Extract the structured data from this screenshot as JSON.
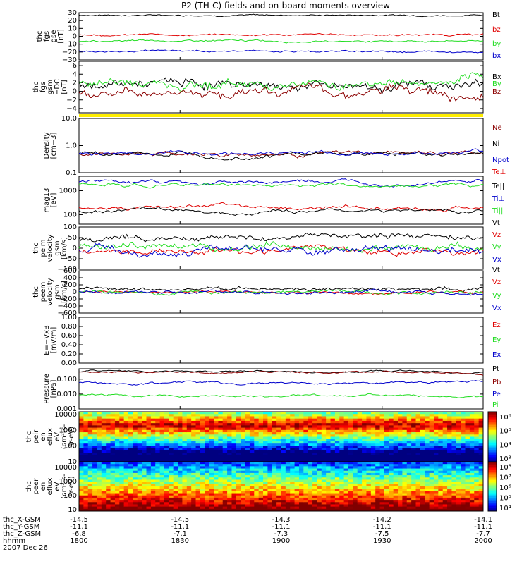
{
  "title": "P2 (TH-C) fields and on-board moments overview",
  "footer": {
    "row_labels": [
      "thc_X-GSM",
      "thc_Y-GSM",
      "thc_Z-GSM",
      "hhmm",
      "2007 Dec 26"
    ],
    "columns": [
      {
        "x": "-14.5",
        "y": "-11.1",
        "z": "-6.8",
        "t": "1800"
      },
      {
        "x": "-14.5",
        "y": "-11.1",
        "z": "-7.1",
        "t": "1830"
      },
      {
        "x": "-14.3",
        "y": "-11.1",
        "z": "-7.3",
        "t": "1900"
      },
      {
        "x": "-14.2",
        "y": "-11.1",
        "z": "-7.5",
        "t": "1930"
      },
      {
        "x": "-14.1",
        "y": "-11.1",
        "z": "-7.7",
        "t": "2000"
      }
    ]
  },
  "colors": {
    "black": "#000000",
    "red": "#e00000",
    "green": "#22dd22",
    "blue": "#0000cc",
    "darkred": "#8b0000",
    "yellow": "#ffee00"
  },
  "chart_data": [
    {
      "id": "fgs_gse",
      "type": "line",
      "ylabel": [
        "thc",
        "fgs",
        "gse",
        "[nT]"
      ],
      "scale": "linear",
      "ylim": [
        -30,
        30
      ],
      "ticks": [
        -30,
        -20,
        -10,
        0,
        10,
        20,
        30
      ],
      "tick_labels": [
        "−30",
        "−20",
        "−10",
        "0",
        "10",
        "20",
        "30"
      ],
      "series": [
        {
          "name": "Bt",
          "color": "black",
          "base": 27,
          "noise": 1
        },
        {
          "name": "bz",
          "color": "red",
          "base": 2,
          "noise": 1.2
        },
        {
          "name": "by",
          "color": "green",
          "base": -6,
          "noise": 1.2
        },
        {
          "name": "bx",
          "color": "blue",
          "base": -19,
          "noise": 1.2
        }
      ]
    },
    {
      "id": "fgs_gsm_dc",
      "type": "line",
      "ylabel": [
        "thc",
        "fgs",
        "gsm",
        "−DC",
        "[nT]"
      ],
      "scale": "linear",
      "ylim": [
        -5,
        7
      ],
      "ticks": [
        -4,
        -2,
        0,
        2,
        4,
        6
      ],
      "tick_labels": [
        "−4",
        "−2",
        "0",
        "2",
        "4",
        "6"
      ],
      "series": [
        {
          "name": "Bx",
          "color": "black",
          "base": 1.5,
          "noise": 1.2
        },
        {
          "name": "By",
          "color": "green",
          "base": 2,
          "noise": 1.2
        },
        {
          "name": "Bz",
          "color": "darkred",
          "base": 0,
          "noise": 1.2
        }
      ]
    },
    {
      "id": "density",
      "type": "line",
      "ylabel": [
        "Density",
        "[cm−3]"
      ],
      "scale": "log",
      "ylim": [
        0.1,
        10
      ],
      "ticks": [
        0.1,
        1,
        10
      ],
      "tick_labels": [
        "0.1",
        "1.0",
        "10.0"
      ],
      "series": [
        {
          "name": "Ne",
          "color": "darkred",
          "base": 0.5,
          "noise": 0.05
        },
        {
          "name": "Ni",
          "color": "black",
          "base": 0.5,
          "noise": 0.05
        },
        {
          "name": "Npot",
          "color": "blue",
          "base": 0.55,
          "noise": 0.03
        }
      ]
    },
    {
      "id": "temp",
      "type": "line",
      "ylabel": [
        "mag13",
        "[eV]"
      ],
      "scale": "log",
      "ylim": [
        40,
        4000
      ],
      "ticks": [
        100,
        1000
      ],
      "tick_labels": [
        "100",
        "1000"
      ],
      "series": [
        {
          "name": "Te⊥",
          "color": "red",
          "base": 200,
          "noise": 0.05
        },
        {
          "name": "Te||",
          "color": "black",
          "base": 150,
          "noise": 0.05
        },
        {
          "name": "Ti⊥",
          "color": "blue",
          "base": 2200,
          "noise": 0.04
        },
        {
          "name": "Ti||",
          "color": "green",
          "base": 1700,
          "noise": 0.04
        }
      ]
    },
    {
      "id": "peim_vel",
      "type": "line",
      "ylabel": [
        "thc",
        "peim",
        "velocity",
        "gsm",
        "[km/s]"
      ],
      "scale": "linear",
      "ylim": [
        -100,
        100
      ],
      "ticks": [
        -100,
        -50,
        0,
        50,
        100
      ],
      "tick_labels": [
        "−100",
        "−50",
        "0",
        "50",
        "100"
      ],
      "series": [
        {
          "name": "Vt",
          "color": "black",
          "base": 50,
          "noise": 15
        },
        {
          "name": "Vz",
          "color": "red",
          "base": -10,
          "noise": 15
        },
        {
          "name": "Vy",
          "color": "green",
          "base": 5,
          "noise": 18
        },
        {
          "name": "Vx",
          "color": "blue",
          "base": -15,
          "noise": 18
        }
      ]
    },
    {
      "id": "peem_vel",
      "type": "line",
      "ylabel": [
        "thc",
        "peem",
        "velocity",
        "gsm",
        "[km/s]"
      ],
      "scale": "linear",
      "ylim": [
        -600,
        600
      ],
      "ticks": [
        -600,
        -400,
        -200,
        0,
        200,
        400,
        600
      ],
      "tick_labels": [
        "−600",
        "−400",
        "−200",
        "0",
        "200",
        "400",
        "600"
      ],
      "series": [
        {
          "name": "Vt",
          "color": "black",
          "base": 80,
          "noise": 60
        },
        {
          "name": "Vz",
          "color": "red",
          "base": 0,
          "noise": 40
        },
        {
          "name": "Vy",
          "color": "green",
          "base": 0,
          "noise": 50
        },
        {
          "name": "Vx",
          "color": "blue",
          "base": 0,
          "noise": 50
        }
      ]
    },
    {
      "id": "efield",
      "type": "line",
      "ylabel": [
        "E=−VxB",
        "[mV/m]"
      ],
      "scale": "linear",
      "ylim": [
        0,
        1
      ],
      "ticks": [
        0,
        0.2,
        0.4,
        0.6,
        0.8,
        1.0
      ],
      "tick_labels": [
        "0.00",
        "0.20",
        "0.40",
        "0.60",
        "0.80",
        "1.00"
      ],
      "series": [
        {
          "name": "Ez",
          "color": "red"
        },
        {
          "name": "Ey",
          "color": "green"
        },
        {
          "name": "Ex",
          "color": "blue"
        }
      ]
    },
    {
      "id": "pressure",
      "type": "line",
      "ylabel": [
        "Pressure",
        "[nPa]"
      ],
      "scale": "log",
      "ylim": [
        0.001,
        0.5
      ],
      "ticks": [
        0.001,
        0.01,
        0.1
      ],
      "tick_labels": [
        "0.001",
        "0.010",
        "0.100"
      ],
      "series": [
        {
          "name": "Pt",
          "color": "black",
          "base": 0.3,
          "noise": 0.02
        },
        {
          "name": "Pb",
          "color": "darkred",
          "base": 0.28,
          "noise": 0.02
        },
        {
          "name": "Pe",
          "color": "blue",
          "base": 0.06,
          "noise": 0.05
        },
        {
          "name": "Pi",
          "color": "green",
          "base": 0.008,
          "noise": 0.05
        }
      ]
    },
    {
      "id": "peir_spec",
      "type": "heatmap",
      "ylabel": [
        "thc",
        "peir",
        "en",
        "eflux",
        "eV",
        "(cm²-s-",
        "sr-eV)"
      ],
      "scale": "log",
      "ylim": [
        10,
        15000
      ],
      "ticks": [
        10,
        100,
        1000,
        10000
      ],
      "tick_labels": [
        "10",
        "100",
        "1000",
        "10000"
      ],
      "colorbar_labels": [
        "10⁶",
        "10⁵",
        "10⁴",
        "10³"
      ]
    },
    {
      "id": "peer_spec",
      "type": "heatmap",
      "ylabel": [
        "thc",
        "peer",
        "en",
        "eflux",
        "eV",
        "(cm²-s-",
        "sr-eV)"
      ],
      "scale": "log",
      "ylim": [
        8,
        25000
      ],
      "ticks": [
        10,
        100,
        1000,
        10000
      ],
      "tick_labels": [
        "10",
        "100",
        "1000",
        "10000"
      ],
      "colorbar_labels": [
        "10⁸",
        "10⁷",
        "10⁶",
        "10⁵",
        "10⁴"
      ]
    }
  ]
}
